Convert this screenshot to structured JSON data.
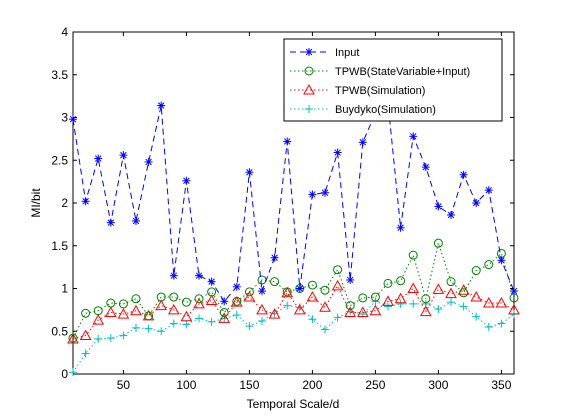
{
  "chart_data": {
    "type": "line",
    "xlabel": "Temporal Scale/d",
    "ylabel": "MI/bit",
    "xlim": [
      10,
      360
    ],
    "ylim": [
      0,
      4
    ],
    "xticks": [
      50,
      100,
      150,
      200,
      250,
      300,
      350
    ],
    "yticks": [
      0,
      0.5,
      1,
      1.5,
      2,
      2.5,
      3,
      3.5,
      4
    ],
    "ytick_labels": [
      "0",
      "0.5",
      "1",
      "1.5",
      "2",
      "2.5",
      "3",
      "3.5",
      "4"
    ],
    "grid": false,
    "legend_position": "top-right",
    "x": [
      10,
      20,
      30,
      40,
      50,
      60,
      70,
      80,
      90,
      100,
      110,
      120,
      130,
      140,
      150,
      160,
      170,
      180,
      190,
      200,
      210,
      220,
      230,
      240,
      250,
      260,
      270,
      280,
      290,
      300,
      310,
      320,
      330,
      340,
      350,
      360
    ],
    "series": [
      {
        "name": "Input",
        "color": "#0000ff",
        "marker": "star",
        "line": "dashed",
        "values": [
          2.98,
          2.02,
          2.52,
          1.77,
          2.56,
          1.79,
          2.48,
          3.14,
          1.15,
          2.26,
          1.15,
          1.08,
          0.85,
          1.02,
          2.36,
          0.97,
          1.36,
          2.72,
          1.0,
          2.1,
          2.12,
          2.59,
          1.1,
          2.71,
          3.05,
          3.17,
          1.71,
          2.78,
          2.42,
          1.96,
          1.86,
          2.33,
          2.0,
          2.15,
          1.33,
          0.97
        ]
      },
      {
        "name": "TPWB(StateVariable+Input)",
        "color": "#008000",
        "marker": "circle",
        "line": "dotted",
        "values": [
          0.42,
          0.71,
          0.74,
          0.83,
          0.82,
          0.88,
          0.68,
          0.9,
          0.9,
          0.84,
          0.88,
          0.96,
          0.72,
          0.85,
          0.96,
          1.1,
          1.08,
          0.96,
          1.0,
          1.04,
          0.98,
          1.22,
          0.8,
          0.89,
          0.9,
          1.06,
          1.09,
          1.39,
          0.88,
          1.53,
          1.08,
          0.95,
          1.21,
          1.28,
          1.41,
          0.89
        ]
      },
      {
        "name": "TPWB(Simulation)",
        "color": "#ff0000",
        "marker": "triangle",
        "line": "dotted",
        "values": [
          0.41,
          0.45,
          0.63,
          0.72,
          0.7,
          0.74,
          0.68,
          0.8,
          0.75,
          0.67,
          0.82,
          0.86,
          0.65,
          0.84,
          0.9,
          0.75,
          0.7,
          0.95,
          0.75,
          0.9,
          0.78,
          1.03,
          0.72,
          0.72,
          0.74,
          0.85,
          0.88,
          1.0,
          0.73,
          0.99,
          0.94,
          0.98,
          0.9,
          0.83,
          0.83,
          0.75
        ]
      },
      {
        "name": "Buydyko(Simulation)",
        "color": "#00bfbf",
        "marker": "plus",
        "line": "dotted",
        "values": [
          0.02,
          0.24,
          0.41,
          0.42,
          0.45,
          0.54,
          0.53,
          0.5,
          0.59,
          0.58,
          0.65,
          0.61,
          0.65,
          0.69,
          0.56,
          0.62,
          0.71,
          0.8,
          0.78,
          0.64,
          0.52,
          0.66,
          0.73,
          0.7,
          0.85,
          0.79,
          0.82,
          0.82,
          0.82,
          0.76,
          0.84,
          0.79,
          0.67,
          0.55,
          0.59,
          0.7
        ]
      }
    ]
  }
}
